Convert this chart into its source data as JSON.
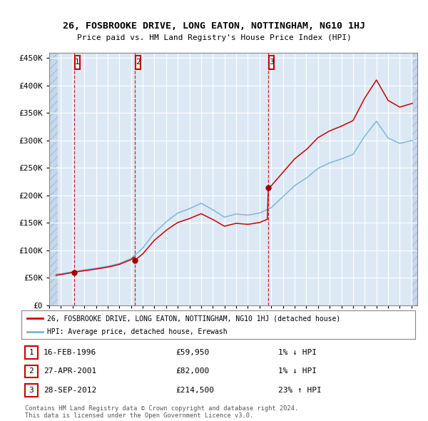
{
  "title": "26, FOSBROOKE DRIVE, LONG EATON, NOTTINGHAM, NG10 1HJ",
  "subtitle": "Price paid vs. HM Land Registry's House Price Index (HPI)",
  "legend_line1": "26, FOSBROOKE DRIVE, LONG EATON, NOTTINGHAM, NG10 1HJ (detached house)",
  "legend_line2": "HPI: Average price, detached house, Erewash",
  "footer1": "Contains HM Land Registry data © Crown copyright and database right 2024.",
  "footer2": "This data is licensed under the Open Government Licence v3.0.",
  "transactions": [
    {
      "num": 1,
      "date": "16-FEB-1996",
      "price": 59950,
      "pct": "1%",
      "dir": "↓"
    },
    {
      "num": 2,
      "date": "27-APR-2001",
      "price": 82000,
      "pct": "1%",
      "dir": "↓"
    },
    {
      "num": 3,
      "date": "28-SEP-2012",
      "price": 214500,
      "pct": "23%",
      "dir": "↑"
    }
  ],
  "transaction_dates_decimal": [
    1996.12,
    2001.32,
    2012.74
  ],
  "transaction_prices": [
    59950,
    82000,
    214500
  ],
  "vline_dates": [
    1996.12,
    2001.32,
    2012.74
  ],
  "hpi_color": "#7ab3d4",
  "price_color": "#cc0000",
  "dot_color": "#990000",
  "vline_color": "#cc0000",
  "background_plot": "#dce9f5",
  "background_hatch": "#c8d8ea",
  "grid_color": "#ffffff",
  "ylim": [
    0,
    460000
  ],
  "xlim_start": 1994.0,
  "xlim_end": 2025.5,
  "hpi_anchor_dates": [
    1994.0,
    1995.0,
    1996.0,
    1997.0,
    1998.0,
    1999.0,
    2000.0,
    2001.0,
    2002.0,
    2003.0,
    2004.0,
    2005.0,
    2006.0,
    2007.0,
    2008.0,
    2009.0,
    2010.0,
    2011.0,
    2012.0,
    2013.0,
    2014.0,
    2015.0,
    2016.0,
    2017.0,
    2018.0,
    2019.0,
    2020.0,
    2021.0,
    2022.0,
    2023.0,
    2024.0,
    2025.0
  ],
  "hpi_anchor_prices": [
    54000,
    57000,
    61500,
    65000,
    68500,
    72000,
    77000,
    86000,
    105000,
    133000,
    153000,
    169000,
    177000,
    187000,
    175000,
    161000,
    167000,
    165000,
    168000,
    178000,
    198000,
    218000,
    232000,
    250000,
    260000,
    267000,
    275000,
    308000,
    335000,
    305000,
    295000,
    300000
  ]
}
